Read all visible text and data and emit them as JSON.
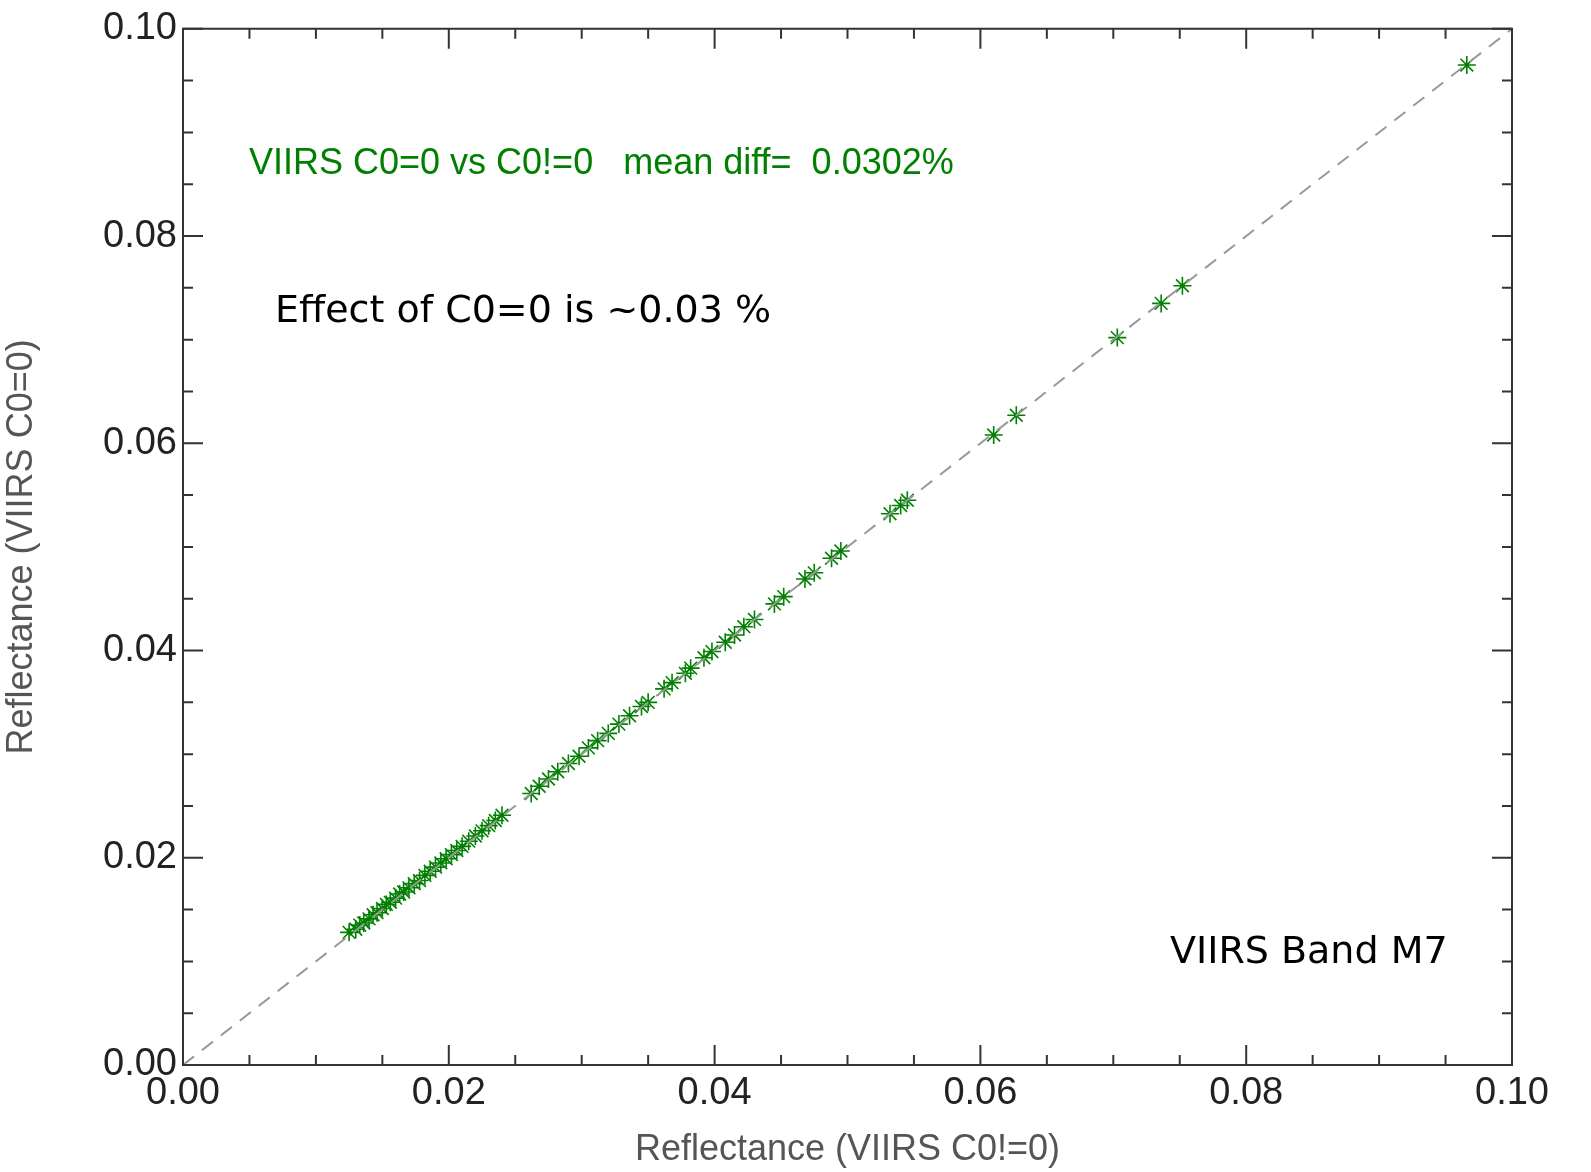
{
  "chart_data": {
    "type": "scatter",
    "title": "VIIRS C0=0 vs C0!=0   mean diff=  0.0302%",
    "xlabel": "Reflectance (VIIRS C0!=0)",
    "ylabel": "Reflectance (VIIRS C0=0)",
    "annotations": [
      "Effect of C0=0 is ~0.03 %",
      "VIIRS Band M7"
    ],
    "xlim": [
      0,
      0.1
    ],
    "ylim": [
      0,
      0.1
    ],
    "xticks": [
      {
        "value": 0,
        "label": "0.00"
      },
      {
        "value": 0.005,
        "label": null
      },
      {
        "value": 0.01,
        "label": null
      },
      {
        "value": 0.015,
        "label": null
      },
      0.02,
      {
        "value": 0.025,
        "label": null
      },
      {
        "value": 0.03,
        "label": null
      },
      {
        "value": 0.035,
        "label": null
      },
      0.04,
      {
        "value": 0.045,
        "label": null
      },
      {
        "value": 0.05,
        "label": null
      },
      {
        "value": 0.055,
        "label": null
      },
      0.06,
      {
        "value": 0.065,
        "label": null
      },
      {
        "value": 0.07,
        "label": null
      },
      {
        "value": 0.075,
        "label": null
      },
      0.08,
      {
        "value": 0.085,
        "label": null
      },
      {
        "value": 0.09,
        "label": null
      },
      {
        "value": 0.095,
        "label": null
      },
      {
        "value": 0.1,
        "label": "0.10"
      }
    ],
    "yticks": [
      {
        "value": 0,
        "label": "0.00"
      },
      {
        "value": 0.005,
        "label": null
      },
      {
        "value": 0.01,
        "label": null
      },
      {
        "value": 0.015,
        "label": null
      },
      0.02,
      {
        "value": 0.025,
        "label": null
      },
      {
        "value": 0.03,
        "label": null
      },
      {
        "value": 0.035,
        "label": null
      },
      0.04,
      {
        "value": 0.045,
        "label": null
      },
      {
        "value": 0.05,
        "label": null
      },
      {
        "value": 0.055,
        "label": null
      },
      0.06,
      {
        "value": 0.065,
        "label": null
      },
      {
        "value": 0.07,
        "label": null
      },
      {
        "value": 0.075,
        "label": null
      },
      0.08,
      {
        "value": 0.085,
        "label": null
      },
      {
        "value": 0.09,
        "label": null
      },
      {
        "value": 0.095,
        "label": null
      },
      {
        "value": 0.1,
        "label": "0.10"
      }
    ],
    "series": [
      {
        "type": "line",
        "color": "#999999",
        "line_style": "dashed",
        "marker": "none",
        "x": [
          0,
          0.1
        ],
        "values": [
          0,
          0.1
        ]
      },
      {
        "type": "scatter",
        "color": "#008000",
        "marker": "cross",
        "x": [
          0.0125,
          0.013,
          0.0133,
          0.0136,
          0.014,
          0.0143,
          0.0146,
          0.015,
          0.0153,
          0.0156,
          0.016,
          0.0163,
          0.0166,
          0.017,
          0.0174,
          0.0178,
          0.0182,
          0.0186,
          0.019,
          0.0194,
          0.0198,
          0.0202,
          0.0206,
          0.021,
          0.0215,
          0.022,
          0.0225,
          0.023,
          0.0235,
          0.024,
          0.0262,
          0.0268,
          0.0275,
          0.0282,
          0.029,
          0.0298,
          0.0305,
          0.0312,
          0.032,
          0.0328,
          0.0336,
          0.0345,
          0.035,
          0.0362,
          0.0368,
          0.0378,
          0.0382,
          0.0392,
          0.0398,
          0.0408,
          0.0415,
          0.0422,
          0.043,
          0.0445,
          0.0452,
          0.0468,
          0.0475,
          0.0488,
          0.0495,
          0.0532,
          0.054,
          0.0545,
          0.061,
          0.0627,
          0.0703,
          0.0736,
          0.0752,
          0.0966
        ],
        "values": [
          0.0128,
          0.0131,
          0.0135,
          0.0137,
          0.0141,
          0.0145,
          0.0147,
          0.0151,
          0.0155,
          0.0157,
          0.0161,
          0.0165,
          0.0167,
          0.0171,
          0.0175,
          0.0178,
          0.0183,
          0.0187,
          0.0191,
          0.0195,
          0.0199,
          0.0203,
          0.0207,
          0.0211,
          0.0216,
          0.0221,
          0.0226,
          0.0231,
          0.0236,
          0.0241,
          0.0262,
          0.0269,
          0.0276,
          0.0283,
          0.0291,
          0.0298,
          0.0306,
          0.0313,
          0.032,
          0.0329,
          0.0337,
          0.0346,
          0.035,
          0.0363,
          0.0369,
          0.0378,
          0.0383,
          0.0393,
          0.0399,
          0.0408,
          0.0415,
          0.0423,
          0.043,
          0.0445,
          0.0452,
          0.0469,
          0.0475,
          0.0489,
          0.0496,
          0.0532,
          0.054,
          0.0545,
          0.0608,
          0.0627,
          0.0702,
          0.0735,
          0.0752,
          0.0965
        ]
      }
    ]
  }
}
